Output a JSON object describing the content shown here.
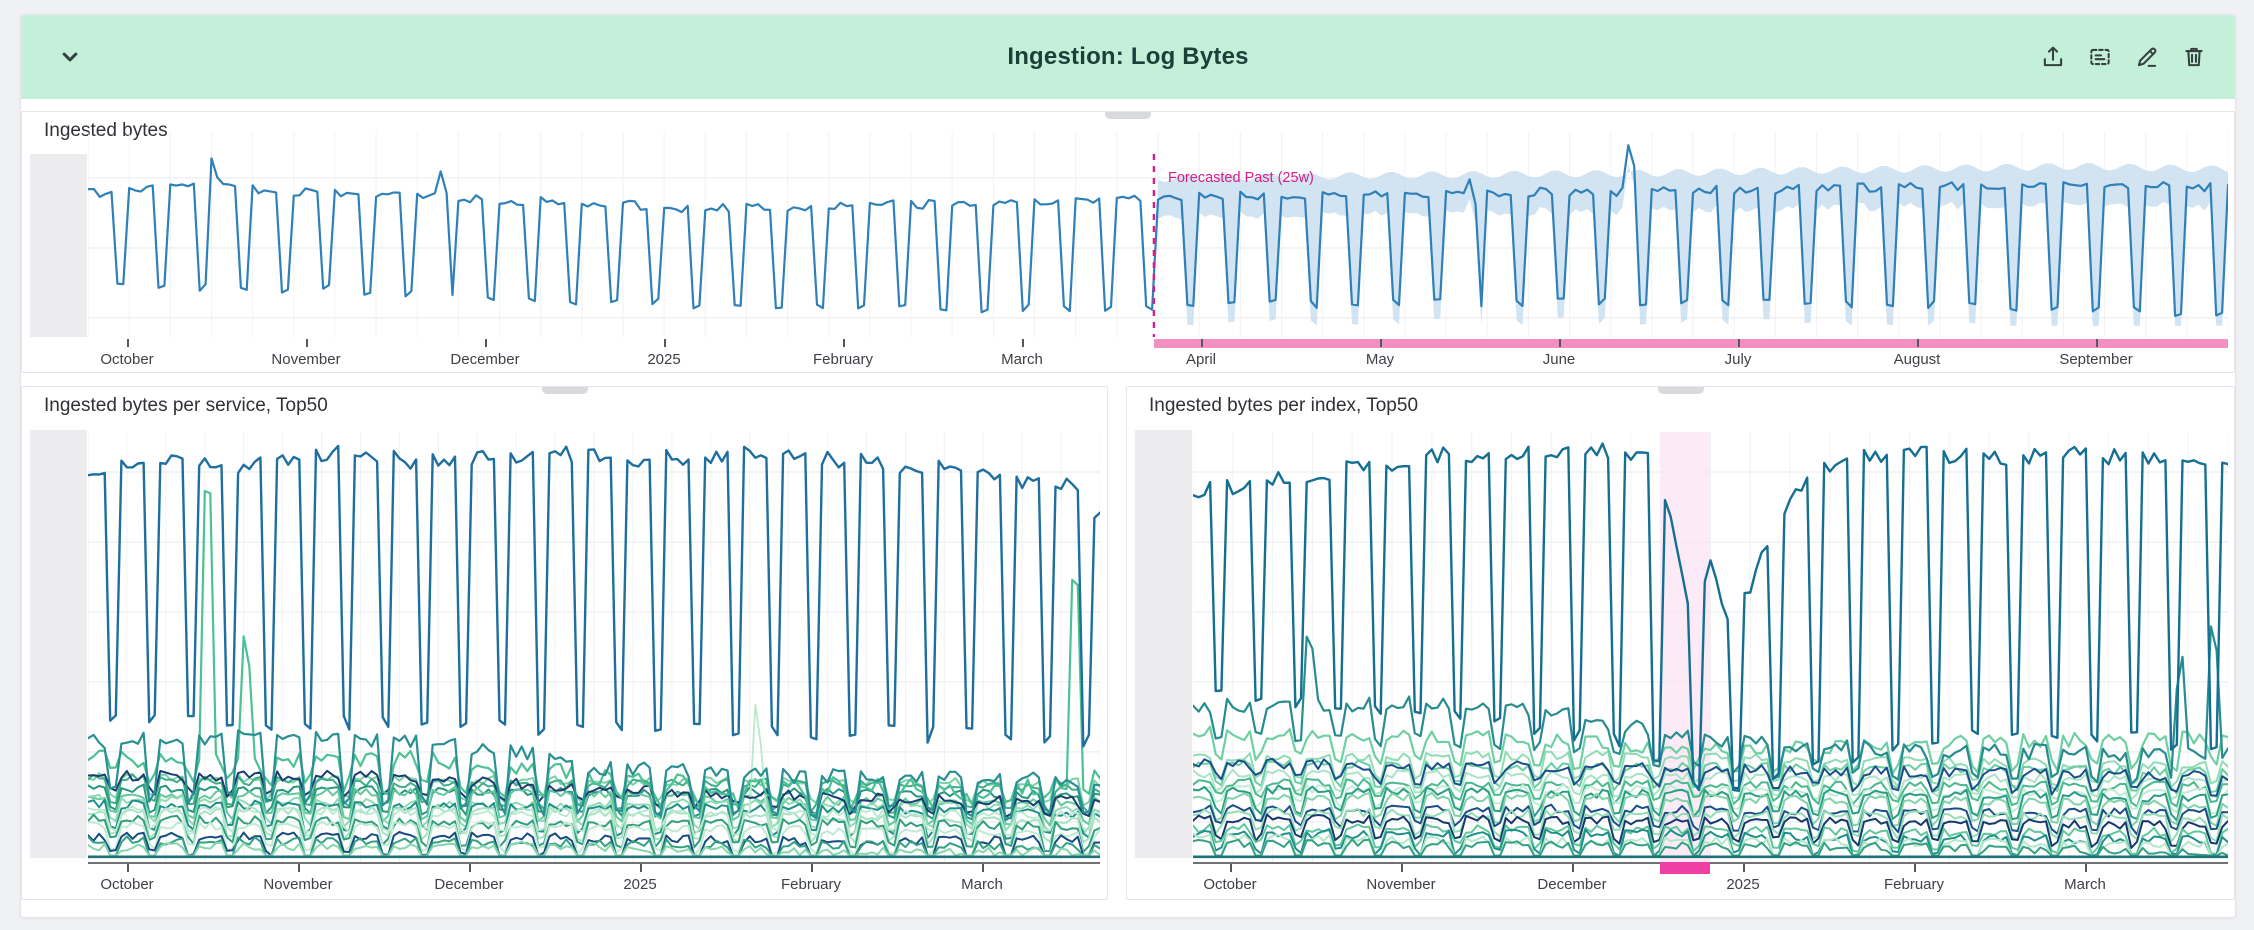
{
  "page": {
    "bg": "#f0f1f5",
    "card_bg": "#ffffff",
    "card_border": "#e3e5e9"
  },
  "header": {
    "title": "Ingestion: Log Bytes",
    "bg": "#c4f0da",
    "title_color": "#1c3f3a",
    "icon_color": "#34413e",
    "icons": [
      "chevron-down",
      "export",
      "copy",
      "edit",
      "delete"
    ]
  },
  "panels": [
    {
      "title": "Ingested bytes"
    },
    {
      "title": "Ingested bytes per service, Top50"
    },
    {
      "title": "Ingested bytes per index, Top50"
    }
  ],
  "chart_data": [
    {
      "type": "line",
      "title": "Ingested bytes",
      "note": "daily series, weekday plateau / weekend dip; y values are fractions of plot height (0=top); y axis collapsed (no labels visible)",
      "y_axis_collapsed": true,
      "x_ticks": [
        "October",
        "November",
        "December",
        "2025",
        "February",
        "March",
        "April",
        "May",
        "June",
        "July",
        "August",
        "September"
      ],
      "days": 365,
      "week_offset": 0,
      "axis": {
        "first": 39,
        "spacing": 179,
        "baseline": false
      },
      "gridlines_y": [
        0.224,
        0.566,
        0.907
      ],
      "vgrid_weekly": true,
      "forecast": {
        "label": "Forecasted Past (25w)",
        "line_t": 0.4981,
        "line_color": "#d91e86",
        "band_color": "#c7ddef",
        "bar_color": "#f48fc2"
      },
      "series": [
        {
          "name": "ingested-bytes-total",
          "color": "#2f80b9",
          "width": 2.2,
          "seed": 7,
          "noise": 0.022,
          "weekday": [
            [
              0,
              0.3
            ],
            [
              0.05,
              0.26
            ],
            [
              0.1,
              0.295
            ],
            [
              0.18,
              0.325
            ],
            [
              0.28,
              0.37
            ],
            [
              0.38,
              0.355
            ],
            [
              0.46,
              0.335
            ],
            [
              0.5,
              0.315
            ],
            [
              0.6,
              0.3
            ],
            [
              0.72,
              0.29
            ],
            [
              0.84,
              0.27
            ],
            [
              0.93,
              0.255
            ],
            [
              1,
              0.27
            ]
          ],
          "weekend": [
            [
              0,
              0.74
            ],
            [
              0.12,
              0.77
            ],
            [
              0.25,
              0.83
            ],
            [
              0.4,
              0.87
            ],
            [
              0.52,
              0.84
            ],
            [
              0.68,
              0.83
            ],
            [
              0.85,
              0.84
            ],
            [
              1,
              0.885
            ]
          ],
          "spikes": [
            {
              "t": 0.058,
              "y": 0.115,
              "w": 1
            },
            {
              "t": 0.165,
              "y": 0.185,
              "w": 1
            },
            {
              "t": 0.645,
              "y": 0.205,
              "w": 2
            },
            {
              "t": 0.72,
              "y": 0.055,
              "w": 1
            },
            {
              "t": 0.905,
              "y": 0.205,
              "w": 1
            }
          ]
        }
      ]
    },
    {
      "type": "line",
      "title": "Ingested bytes per service, Top50",
      "note": "top-50 services; dominant weekly square-wave series plus dense band of smaller series near zero",
      "y_axis_collapsed": true,
      "x_ticks": [
        "October",
        "November",
        "December",
        "2025",
        "February",
        "March"
      ],
      "days": 183,
      "week_offset": 1,
      "axis": {
        "first": 39,
        "spacing": 171,
        "baseline": true
      },
      "gridlines_y": [
        0.093,
        0.256,
        0.419,
        0.581,
        0.744,
        0.907
      ],
      "vgrid_weekly": true,
      "series": [
        {
          "name": "service-1",
          "color": "#1e6f9e",
          "width": 2.4,
          "seed": 11,
          "noise": 0.02,
          "weekday": [
            [
              0,
              0.1
            ],
            [
              0.07,
              0.065
            ],
            [
              0.15,
              0.085
            ],
            [
              0.24,
              0.05
            ],
            [
              0.34,
              0.07
            ],
            [
              0.44,
              0.05
            ],
            [
              0.54,
              0.062
            ],
            [
              0.64,
              0.05
            ],
            [
              0.74,
              0.068
            ],
            [
              0.84,
              0.08
            ],
            [
              0.92,
              0.11
            ],
            [
              0.97,
              0.13
            ],
            [
              1,
              0.2
            ]
          ],
          "weekend": [
            [
              0,
              0.655
            ],
            [
              0.2,
              0.675
            ],
            [
              0.5,
              0.69
            ],
            [
              0.8,
              0.7
            ],
            [
              1,
              0.72
            ]
          ],
          "spikes": []
        },
        {
          "name": "service-2",
          "color": "#2a8f92",
          "width": 2.2,
          "seed": 12,
          "noise": 0.018,
          "weekday": [
            [
              0,
              0.72
            ],
            [
              0.15,
              0.71
            ],
            [
              0.3,
              0.72
            ],
            [
              0.42,
              0.74
            ],
            [
              0.5,
              0.78
            ],
            [
              0.7,
              0.8
            ],
            [
              1,
              0.81
            ]
          ],
          "weekend": [
            [
              0,
              0.84
            ],
            [
              0.3,
              0.86
            ],
            [
              0.5,
              0.88
            ],
            [
              1,
              0.89
            ]
          ],
          "spikes": []
        },
        {
          "name": "service-3",
          "color": "#4cc193",
          "width": 2.2,
          "seed": 13,
          "noise": 0.022,
          "weekday": [
            [
              0,
              0.76
            ],
            [
              0.2,
              0.77
            ],
            [
              0.35,
              0.76
            ],
            [
              0.5,
              0.8
            ],
            [
              0.65,
              0.83
            ],
            [
              0.8,
              0.82
            ],
            [
              0.9,
              0.84
            ],
            [
              1,
              0.8
            ]
          ],
          "weekend": [
            [
              0,
              0.8
            ],
            [
              0.3,
              0.82
            ],
            [
              0.5,
              0.85
            ],
            [
              0.75,
              0.87
            ],
            [
              1,
              0.84
            ]
          ],
          "spikes": [
            {
              "t": 0.118,
              "y": 0.08,
              "w": 1
            },
            {
              "t": 0.155,
              "y": 0.45,
              "w": 1
            },
            {
              "t": 0.975,
              "y": 0.29,
              "w": 1
            }
          ]
        },
        {
          "name": "service-4",
          "color": "#1a3e71",
          "width": 2,
          "seed": 14,
          "noise": 0.012,
          "weekday": [
            [
              0,
              0.8
            ],
            [
              0.3,
              0.8
            ],
            [
              0.5,
              0.83
            ],
            [
              0.75,
              0.85
            ],
            [
              1,
              0.86
            ]
          ],
          "weekend": [
            [
              0,
              0.835
            ],
            [
              0.4,
              0.845
            ],
            [
              0.7,
              0.875
            ],
            [
              1,
              0.89
            ]
          ],
          "spikes": []
        },
        {
          "name": "service-5",
          "color": "#b9e8cd",
          "width": 1.8,
          "seed": 15,
          "noise": 0.01,
          "weekday": [
            [
              0,
              0.88
            ],
            [
              0.5,
              0.885
            ],
            [
              1,
              0.89
            ]
          ],
          "weekend": [
            [
              0,
              0.925
            ],
            [
              1,
              0.93
            ]
          ],
          "spikes": [
            {
              "t": 0.66,
              "y": 0.62,
              "w": 1
            }
          ]
        }
      ],
      "cluster": {
        "count": 12,
        "seed": 40,
        "top": 0.8,
        "bottom": 0.962,
        "dip": 0.045,
        "noise": 0.01,
        "palette": [
          "#79d1a6",
          "#3fae89",
          "#27977f",
          "#63c89d",
          "#8fdab2",
          "#1f8f8c",
          "#a7e2c3",
          "#2f9f7e",
          "#bfe9d2",
          "#174b82",
          "#35a183",
          "#86d6ad"
        ]
      },
      "flat_line": {
        "y": 0.988,
        "color": "#1e7277",
        "width": 2.6
      }
    },
    {
      "type": "line",
      "title": "Ingested bytes per index, Top50",
      "note": "top-50 indexes; pink highlighted time range in late December where main series drops",
      "y_axis_collapsed": true,
      "x_ticks": [
        "October",
        "November",
        "December",
        "2025",
        "February",
        "March"
      ],
      "days": 183,
      "week_offset": 1,
      "axis": {
        "first": 37,
        "spacing": 171,
        "baseline": true
      },
      "gridlines_y": [
        0.093,
        0.256,
        0.419,
        0.581,
        0.744,
        0.907
      ],
      "vgrid_weekly": true,
      "highlight": {
        "start_t": 0.451,
        "end_t": 0.4995,
        "fill": "#fbe3f3",
        "bar_color": "#ee3fa4"
      },
      "series": [
        {
          "name": "index-1",
          "color": "#156f93",
          "width": 2.4,
          "seed": 31,
          "noise": 0.02,
          "weekday": [
            [
              0,
              0.14
            ],
            [
              0.06,
              0.12
            ],
            [
              0.14,
              0.09
            ],
            [
              0.22,
              0.06
            ],
            [
              0.3,
              0.045
            ],
            [
              0.38,
              0.04
            ],
            [
              0.44,
              0.05
            ],
            [
              0.46,
              0.18
            ],
            [
              0.48,
              0.42
            ],
            [
              0.5,
              0.3
            ],
            [
              0.52,
              0.46
            ],
            [
              0.545,
              0.32
            ],
            [
              0.57,
              0.2
            ],
            [
              0.6,
              0.08
            ],
            [
              0.68,
              0.05
            ],
            [
              0.76,
              0.06
            ],
            [
              0.84,
              0.05
            ],
            [
              0.92,
              0.06
            ],
            [
              1,
              0.09
            ]
          ],
          "weekend": [
            [
              0,
              0.6
            ],
            [
              0.15,
              0.64
            ],
            [
              0.3,
              0.68
            ],
            [
              0.42,
              0.72
            ],
            [
              0.47,
              0.82
            ],
            [
              0.52,
              0.85
            ],
            [
              0.58,
              0.78
            ],
            [
              0.7,
              0.72
            ],
            [
              0.85,
              0.7
            ],
            [
              1,
              0.74
            ]
          ],
          "spikes": []
        },
        {
          "name": "index-2",
          "color": "#268c8e",
          "width": 2.2,
          "seed": 32,
          "noise": 0.018,
          "weekday": [
            [
              0,
              0.64
            ],
            [
              0.2,
              0.63
            ],
            [
              0.35,
              0.65
            ],
            [
              0.5,
              0.72
            ],
            [
              0.7,
              0.74
            ],
            [
              1,
              0.75
            ]
          ],
          "weekend": [
            [
              0,
              0.71
            ],
            [
              0.3,
              0.72
            ],
            [
              0.5,
              0.79
            ],
            [
              0.75,
              0.8
            ],
            [
              1,
              0.81
            ]
          ],
          "spikes": [
            {
              "t": 0.112,
              "y": 0.43,
              "w": 1
            },
            {
              "t": 0.955,
              "y": 0.5,
              "w": 1
            },
            {
              "t": 0.985,
              "y": 0.42,
              "w": 1
            }
          ]
        },
        {
          "name": "index-3",
          "color": "#6fcfa2",
          "width": 2.2,
          "seed": 33,
          "noise": 0.016,
          "weekday": [
            [
              0,
              0.7
            ],
            [
              0.3,
              0.71
            ],
            [
              0.5,
              0.74
            ],
            [
              0.75,
              0.72
            ],
            [
              1,
              0.71
            ]
          ],
          "weekend": [
            [
              0,
              0.75
            ],
            [
              0.4,
              0.77
            ],
            [
              0.7,
              0.78
            ],
            [
              1,
              0.77
            ]
          ],
          "spikes": []
        },
        {
          "name": "index-4",
          "color": "#1b4f8a",
          "width": 2,
          "seed": 34,
          "noise": 0.012,
          "weekday": [
            [
              0,
              0.77
            ],
            [
              0.4,
              0.78
            ],
            [
              0.7,
              0.79
            ],
            [
              1,
              0.8
            ]
          ],
          "weekend": [
            [
              0,
              0.8
            ],
            [
              0.5,
              0.82
            ],
            [
              1,
              0.84
            ]
          ],
          "spikes": []
        }
      ],
      "cluster": {
        "count": 14,
        "seed": 60,
        "top": 0.76,
        "bottom": 0.962,
        "dip": 0.04,
        "noise": 0.01,
        "palette": [
          "#8fdcb4",
          "#6bcda2",
          "#a9e4c6",
          "#49b98e",
          "#c2ecd6",
          "#2a9d84",
          "#7fd3a8",
          "#1b4f8a",
          "#93dcb5",
          "#16386e",
          "#5fc79c",
          "#1f8f8c",
          "#b4e7c8",
          "#35a183"
        ]
      },
      "flat_line": {
        "y": 0.988,
        "color": "#1e7277",
        "width": 2.6
      }
    }
  ]
}
